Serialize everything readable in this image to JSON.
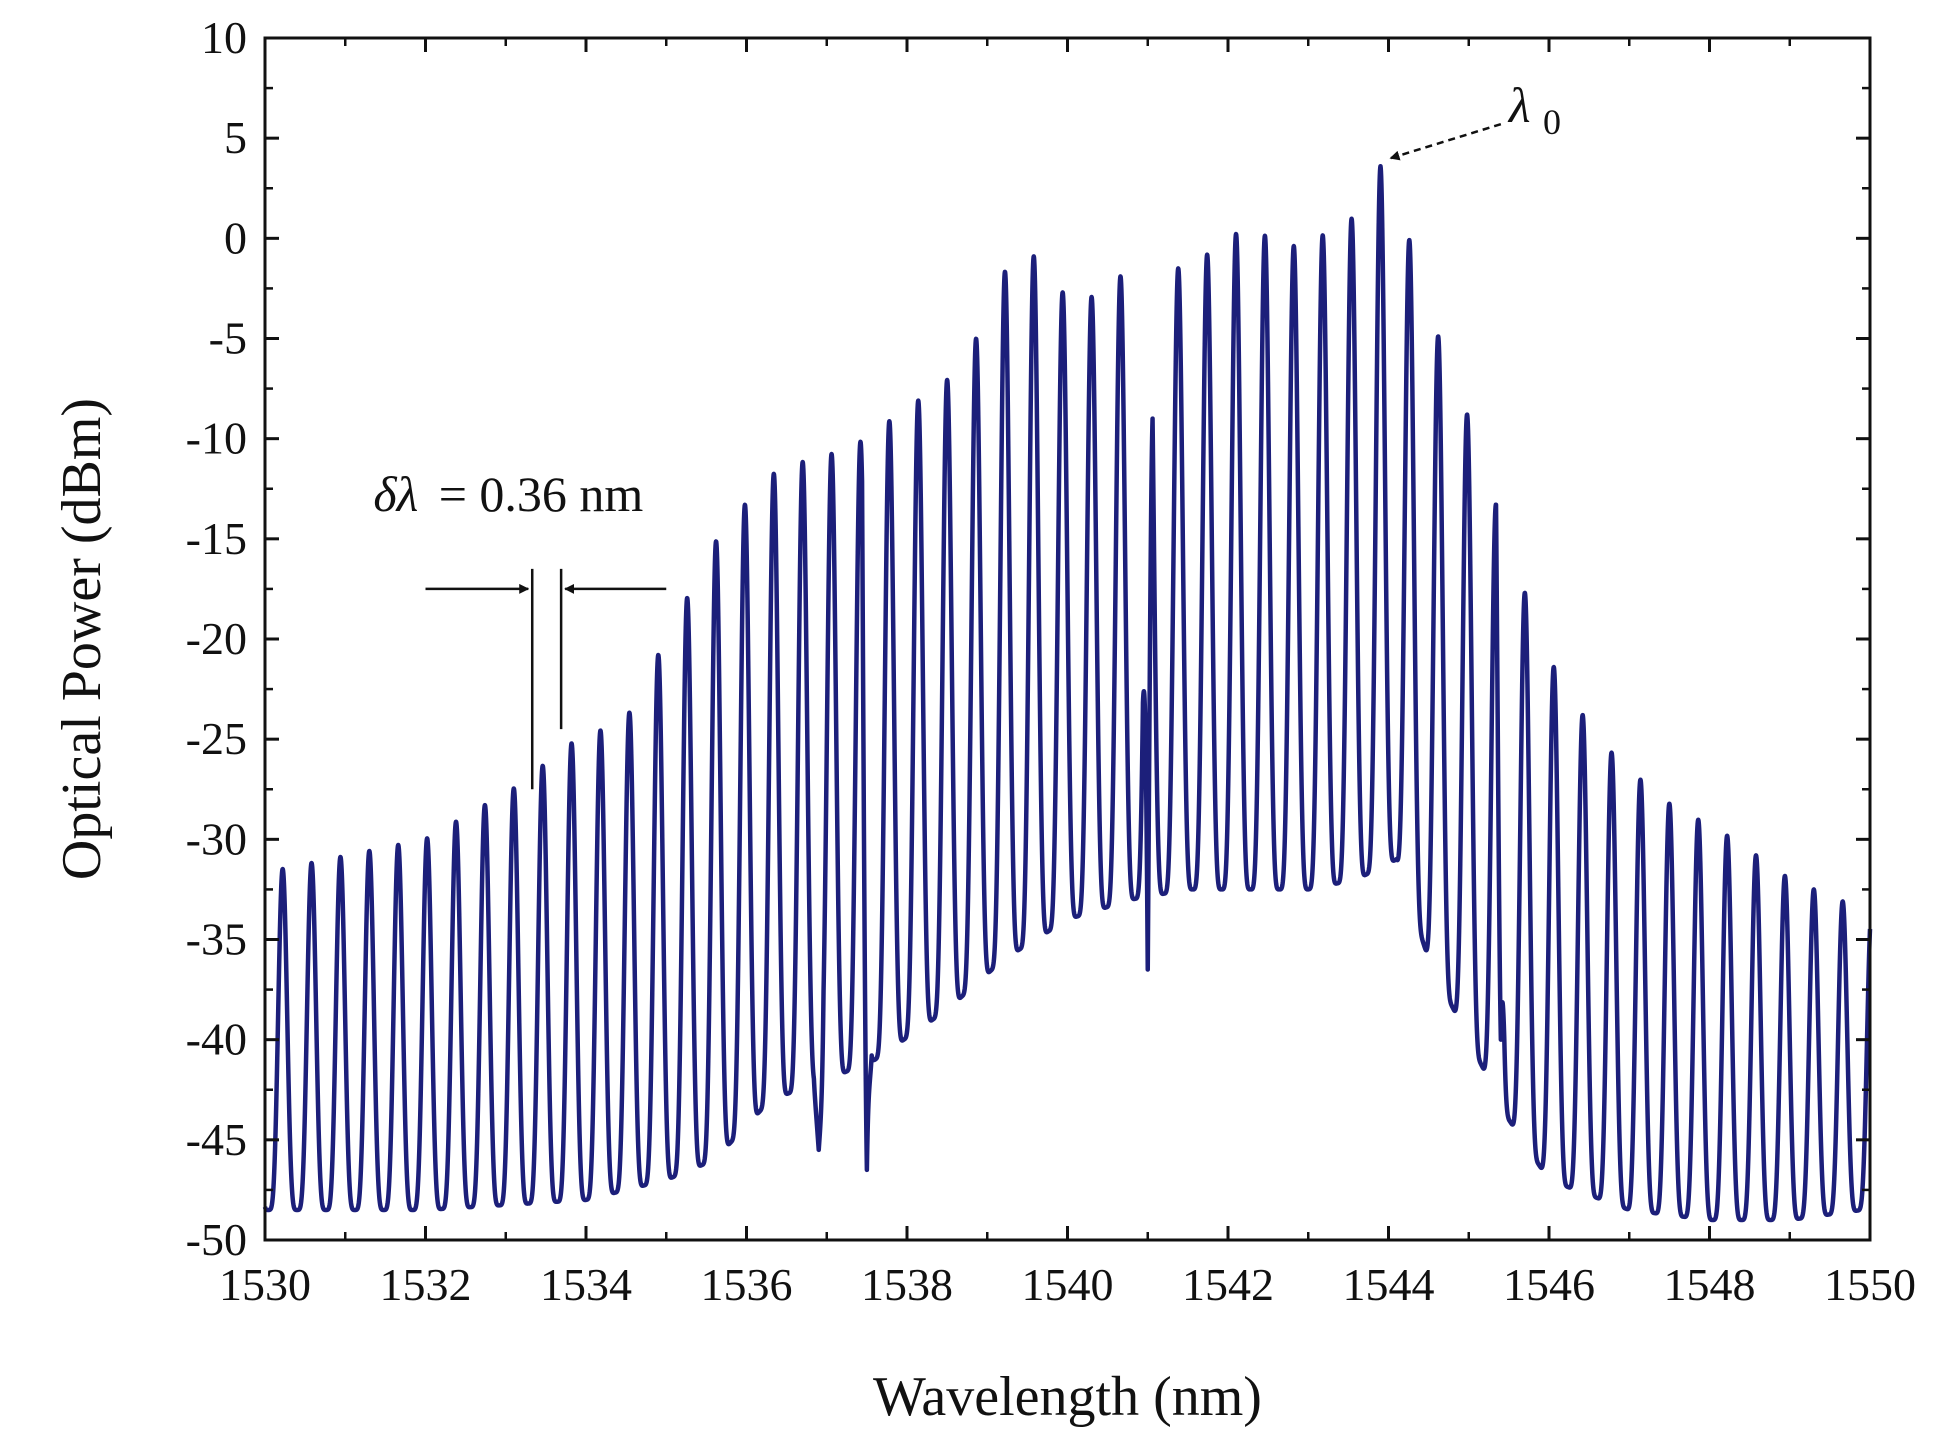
{
  "chart_data": {
    "type": "line",
    "title": "",
    "xlabel": "Wavelength (nm)",
    "ylabel": "Optical Power (dBm)",
    "xlim": [
      1530,
      1550
    ],
    "ylim": [
      -50,
      10
    ],
    "xticks": [
      "1530",
      "1532",
      "1534",
      "1536",
      "1538",
      "1540",
      "1542",
      "1544",
      "1546",
      "1548",
      "1550"
    ],
    "yticks": [
      "10",
      "5",
      "0",
      "-5",
      "-10",
      "-15",
      "-20",
      "-25",
      "-30",
      "-35",
      "-40",
      "-45",
      "-50"
    ],
    "grid": false,
    "line_color": "#1c1f7a",
    "series": [
      {
        "name": "spectrum",
        "comb_spacing_nm": 0.36,
        "note": "Comb of peaks; peak envelope and trough envelope given as [wavelength_nm, dBm] points",
        "peak_envelope": [
          [
            1530.2,
            -31.5
          ],
          [
            1532.0,
            -30.0
          ],
          [
            1533.3,
            -27.0
          ],
          [
            1533.66,
            -25.5
          ],
          [
            1534.5,
            -24.0
          ],
          [
            1535.0,
            -20.0
          ],
          [
            1535.7,
            -14.5
          ],
          [
            1536.4,
            -11.5
          ],
          [
            1537.3,
            -10.5
          ],
          [
            1538.0,
            -8.5
          ],
          [
            1538.7,
            -6.5
          ],
          [
            1539.4,
            0.0
          ],
          [
            1540.1,
            -3.5
          ],
          [
            1540.8,
            -1.5
          ],
          [
            1541.5,
            -1.5
          ],
          [
            1542.2,
            0.5
          ],
          [
            1542.9,
            -0.5
          ],
          [
            1543.55,
            1.0
          ],
          [
            1543.9,
            3.6
          ],
          [
            1544.3,
            -0.5
          ],
          [
            1544.7,
            -6.0
          ],
          [
            1545.1,
            -10.0
          ],
          [
            1545.5,
            -15.5
          ],
          [
            1546.0,
            -21.0
          ],
          [
            1546.6,
            -25.0
          ],
          [
            1547.4,
            -28.0
          ],
          [
            1548.3,
            -30.0
          ],
          [
            1549.0,
            -32.0
          ],
          [
            1549.9,
            -33.5
          ]
        ],
        "trough_envelope": [
          [
            1530.2,
            -48.5
          ],
          [
            1532.0,
            -48.5
          ],
          [
            1534.0,
            -48.0
          ],
          [
            1535.0,
            -47.0
          ],
          [
            1535.6,
            -46.0
          ],
          [
            1536.3,
            -43.0
          ],
          [
            1537.0,
            -42.0
          ],
          [
            1537.6,
            -41.0
          ],
          [
            1538.5,
            -38.5
          ],
          [
            1539.2,
            -36.0
          ],
          [
            1540.0,
            -34.0
          ],
          [
            1540.8,
            -33.0
          ],
          [
            1541.5,
            -32.5
          ],
          [
            1542.3,
            -32.5
          ],
          [
            1543.0,
            -32.5
          ],
          [
            1543.6,
            -32.0
          ],
          [
            1544.1,
            -31.0
          ],
          [
            1544.5,
            -36.0
          ],
          [
            1545.0,
            -40.0
          ],
          [
            1545.5,
            -44.0
          ],
          [
            1546.0,
            -47.0
          ],
          [
            1547.0,
            -48.5
          ],
          [
            1548.0,
            -49.0
          ],
          [
            1549.0,
            -49.0
          ],
          [
            1549.9,
            -48.5
          ]
        ],
        "dips": [
          [
            1536.9,
            -45.5
          ],
          [
            1537.5,
            -46.5
          ],
          [
            1541.0,
            -36.5
          ],
          [
            1545.4,
            -40.0
          ]
        ]
      }
    ],
    "annotations": {
      "delta_lambda_symbol": "δλ",
      "delta_lambda_value": "= 0.36 nm",
      "lambda0_symbol": "λ",
      "lambda0_subscript": "0",
      "delta_marker_wavelengths": [
        1533.33,
        1533.69
      ],
      "lambda0_wavelength": 1543.9
    }
  }
}
